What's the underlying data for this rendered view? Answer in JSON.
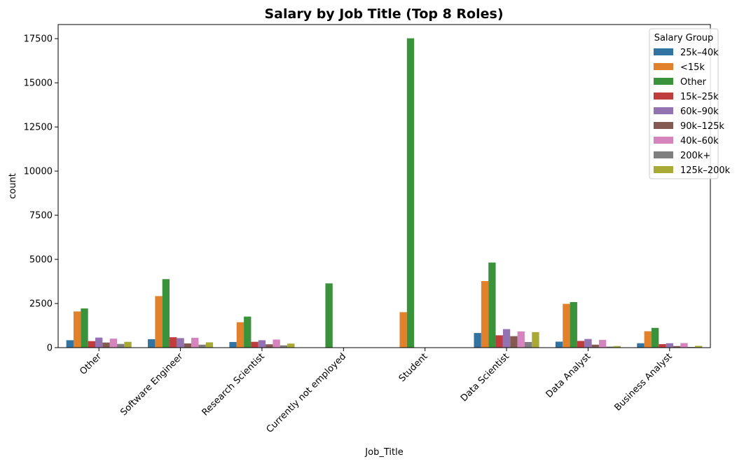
{
  "chart_data": {
    "type": "bar",
    "title": "Salary by Job Title (Top 8 Roles)",
    "xlabel": "Job_Title",
    "ylabel": "count",
    "ylim": [
      0,
      18300
    ],
    "yticks": [
      0,
      2500,
      5000,
      7500,
      10000,
      12500,
      15000,
      17500
    ],
    "categories": [
      "Other",
      "Software Engineer",
      "Research Scientist",
      "Currently not employed",
      "Student",
      "Data Scientist",
      "Data Analyst",
      "Business Analyst"
    ],
    "legend": {
      "title": "Salary Group",
      "placement": "top-right"
    },
    "series": [
      {
        "name": "25k–40k",
        "color": "#3274a1",
        "values": [
          420,
          480,
          320,
          0,
          0,
          830,
          340,
          250
        ]
      },
      {
        "name": "<15k",
        "color": "#e1812c",
        "values": [
          2050,
          2920,
          1440,
          0,
          2010,
          3770,
          2480,
          930
        ]
      },
      {
        "name": "Other",
        "color": "#3a923a",
        "values": [
          2220,
          3880,
          1760,
          3640,
          17520,
          4820,
          2580,
          1120
        ]
      },
      {
        "name": "15k–25k",
        "color": "#c03d3e",
        "values": [
          370,
          590,
          330,
          0,
          0,
          700,
          380,
          200
        ]
      },
      {
        "name": "60k–90k",
        "color": "#9372b2",
        "values": [
          570,
          540,
          420,
          0,
          0,
          1050,
          490,
          250
        ]
      },
      {
        "name": "90k–125k",
        "color": "#845b53",
        "values": [
          290,
          240,
          190,
          0,
          0,
          650,
          170,
          90
        ]
      },
      {
        "name": "40k–60k",
        "color": "#d684bd",
        "values": [
          510,
          560,
          460,
          0,
          0,
          920,
          440,
          260
        ]
      },
      {
        "name": "200k+",
        "color": "#7f7f7f",
        "values": [
          210,
          170,
          130,
          0,
          0,
          320,
          60,
          40
        ]
      },
      {
        "name": "125k–200k",
        "color": "#a9aa35",
        "values": [
          330,
          300,
          230,
          0,
          0,
          880,
          90,
          100
        ]
      }
    ]
  }
}
